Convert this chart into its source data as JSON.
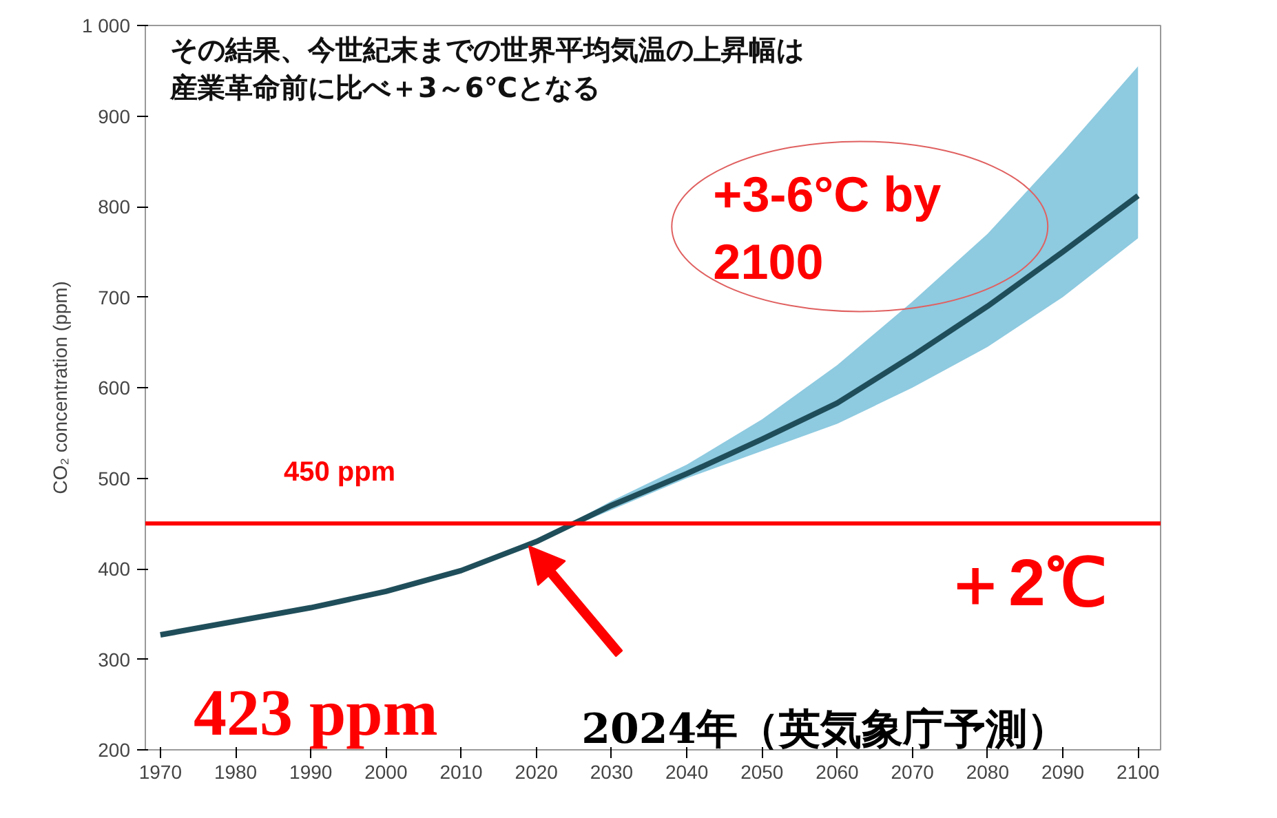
{
  "chart_data": {
    "type": "line",
    "title": "その結果、今世紀末までの世界平均気温の上昇幅は",
    "subtitle": "産業革命前に比べ＋3～6℃となる",
    "ylabel": "CO₂ concentration (ppm)",
    "x": [
      1970,
      1980,
      1990,
      2000,
      2010,
      2020,
      2030,
      2040,
      2050,
      2060,
      2070,
      2080,
      2090,
      2100
    ],
    "series": [
      {
        "color": "#1f4e5a",
        "values": [
          327,
          342,
          357,
          375,
          398,
          430,
          470,
          505,
          543,
          583,
          635,
          690,
          750,
          812
        ],
        "lower": [
          327,
          342,
          357,
          375,
          398,
          430,
          465,
          500,
          530,
          560,
          600,
          645,
          700,
          765
        ],
        "upper": [
          327,
          342,
          357,
          375,
          398,
          430,
          475,
          515,
          565,
          625,
          695,
          770,
          860,
          955
        ]
      }
    ],
    "xlim": [
      1968,
      2103
    ],
    "ylim": [
      200,
      1000
    ],
    "xticks": [
      1970,
      1980,
      1990,
      2000,
      2010,
      2020,
      2030,
      2040,
      2050,
      2060,
      2070,
      2080,
      2090,
      2100
    ],
    "yticks": [
      200,
      300,
      400,
      500,
      600,
      700,
      800,
      900,
      {
        "value": 1000,
        "label": "1 000"
      }
    ],
    "ref_lines": [
      {
        "axis": "y",
        "value": 450,
        "label": "450 ppm",
        "color": "#ff0000"
      }
    ],
    "annotations": [
      "+3-6°C by\n2100",
      "＋2℃",
      {
        "text": "423  ppm",
        "x": 2019,
        "y": 425
      },
      "2024年（英気象庁予測）"
    ],
    "grid": false,
    "marker": "none",
    "line_style": "solid"
  }
}
